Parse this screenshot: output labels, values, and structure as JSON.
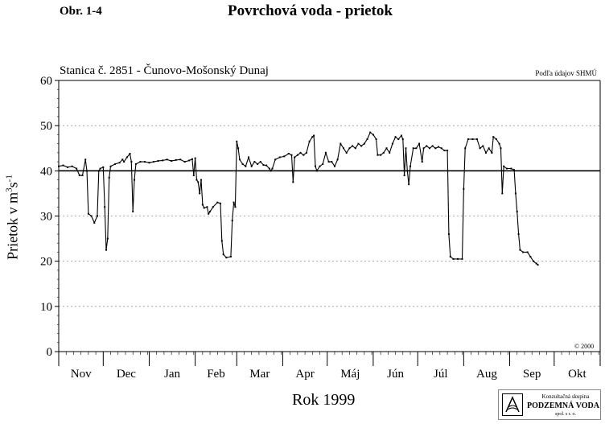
{
  "header": {
    "figure_label": "Obr. 1-4",
    "title": "Povrchová voda - prietok",
    "station": "Stanica č. 2851 - Čunovo-Mošonský Dunaj",
    "source": "Podľa údajov SHMÚ",
    "copyright": "© 2000"
  },
  "logo": {
    "line1": "Konzultačná skupina",
    "line2": "PODZEMNÁ VODA",
    "line3": "spol. s r. o."
  },
  "chart_data": {
    "type": "line",
    "xlabel": "Rok 1999",
    "ylabel": "Prietok v m",
    "ylabel_unit_sup1": "3",
    "ylabel_unit_mid": "s",
    "ylabel_unit_sup2": "-1",
    "ylim": [
      0,
      60
    ],
    "yticks": [
      0,
      10,
      20,
      30,
      40,
      50,
      60
    ],
    "grid": "horizontal-dotted",
    "months": [
      "Nov",
      "Dec",
      "Jan",
      "Feb",
      "Mar",
      "Apr",
      "Máj",
      "Jún",
      "Júl",
      "Aug",
      "Sep",
      "Okt"
    ],
    "x_unit": "day index from 1 Nov 1998",
    "x_range": [
      0,
      365
    ],
    "reference_line": 40,
    "series": [
      {
        "values": [
          [
            0,
            41
          ],
          [
            3,
            41.2
          ],
          [
            6,
            40.8
          ],
          [
            9,
            41
          ],
          [
            12,
            40.5
          ],
          [
            14,
            39
          ],
          [
            16,
            39
          ],
          [
            18,
            42.5
          ],
          [
            19,
            40
          ],
          [
            20,
            30.5
          ],
          [
            22,
            30
          ],
          [
            24,
            28.5
          ],
          [
            26,
            30
          ],
          [
            27,
            40
          ],
          [
            28,
            40.5
          ],
          [
            30,
            40.8
          ],
          [
            31,
            32
          ],
          [
            32,
            22.5
          ],
          [
            33,
            25
          ],
          [
            34,
            38.5
          ],
          [
            35,
            41
          ],
          [
            38,
            41.5
          ],
          [
            41,
            41.8
          ],
          [
            43,
            42.5
          ],
          [
            44,
            42
          ],
          [
            46,
            43
          ],
          [
            48,
            43.8
          ],
          [
            49,
            42
          ],
          [
            50,
            31
          ],
          [
            51,
            38
          ],
          [
            52,
            41.5
          ],
          [
            55,
            42
          ],
          [
            58,
            42
          ],
          [
            61,
            41.8
          ],
          [
            64,
            42
          ],
          [
            67,
            42.2
          ],
          [
            70,
            42.3
          ],
          [
            73,
            42.5
          ],
          [
            76,
            42.2
          ],
          [
            79,
            42.4
          ],
          [
            82,
            42.5
          ],
          [
            85,
            42
          ],
          [
            88,
            42.3
          ],
          [
            90,
            42.6
          ],
          [
            91,
            39
          ],
          [
            92,
            42.8
          ],
          [
            93,
            38
          ],
          [
            94,
            37.5
          ],
          [
            95,
            35
          ],
          [
            96,
            38
          ],
          [
            97,
            32.5
          ],
          [
            98,
            31.8
          ],
          [
            100,
            32
          ],
          [
            101,
            30.5
          ],
          [
            102,
            31
          ],
          [
            104,
            32
          ],
          [
            107,
            33
          ],
          [
            109,
            32.8
          ],
          [
            110,
            24.5
          ],
          [
            111,
            21.5
          ],
          [
            113,
            20.8
          ],
          [
            116,
            21
          ],
          [
            117,
            29
          ],
          [
            118,
            33
          ],
          [
            119,
            32
          ],
          [
            120,
            46.5
          ],
          [
            121,
            45
          ],
          [
            122,
            42.5
          ],
          [
            124,
            41.5
          ],
          [
            126,
            41
          ],
          [
            128,
            43
          ],
          [
            130,
            41
          ],
          [
            132,
            42
          ],
          [
            134,
            41.5
          ],
          [
            136,
            42
          ],
          [
            138,
            41.3
          ],
          [
            140,
            41.2
          ],
          [
            142,
            40.5
          ],
          [
            143,
            40
          ],
          [
            144,
            40.5
          ],
          [
            146,
            42.5
          ],
          [
            149,
            43
          ],
          [
            152,
            43.2
          ],
          [
            155,
            43.8
          ],
          [
            157,
            43.5
          ],
          [
            158,
            37.5
          ],
          [
            159,
            43
          ],
          [
            161,
            43.5
          ],
          [
            163,
            44
          ],
          [
            165,
            43.5
          ],
          [
            167,
            44
          ],
          [
            169,
            46.5
          ],
          [
            171,
            47.5
          ],
          [
            172,
            47.8
          ],
          [
            173,
            41
          ],
          [
            174,
            40
          ],
          [
            176,
            41
          ],
          [
            178,
            41.5
          ],
          [
            180,
            44
          ],
          [
            182,
            42
          ],
          [
            184,
            42
          ],
          [
            186,
            41
          ],
          [
            188,
            42.5
          ],
          [
            190,
            46
          ],
          [
            192,
            45
          ],
          [
            194,
            44
          ],
          [
            196,
            45
          ],
          [
            198,
            45.5
          ],
          [
            200,
            45
          ],
          [
            202,
            46
          ],
          [
            204,
            45.5
          ],
          [
            206,
            46
          ],
          [
            208,
            47
          ],
          [
            210,
            48.5
          ],
          [
            212,
            48
          ],
          [
            214,
            47
          ],
          [
            215,
            43.5
          ],
          [
            217,
            43.5
          ],
          [
            219,
            44
          ],
          [
            221,
            45
          ],
          [
            223,
            44
          ],
          [
            225,
            46
          ],
          [
            227,
            47.5
          ],
          [
            229,
            47
          ],
          [
            231,
            47.8
          ],
          [
            232,
            47
          ],
          [
            233,
            39
          ],
          [
            234,
            45
          ],
          [
            235,
            40
          ],
          [
            236,
            37
          ],
          [
            237,
            41
          ],
          [
            239,
            45
          ],
          [
            241,
            45
          ],
          [
            243,
            46
          ],
          [
            245,
            42
          ],
          [
            246,
            45
          ],
          [
            248,
            45.5
          ],
          [
            250,
            45
          ],
          [
            252,
            45.5
          ],
          [
            254,
            45
          ],
          [
            256,
            45.3
          ],
          [
            258,
            45
          ],
          [
            260,
            44.5
          ],
          [
            262,
            44.5
          ],
          [
            263,
            26
          ],
          [
            264,
            21
          ],
          [
            266,
            20.5
          ],
          [
            269,
            20.5
          ],
          [
            272,
            20.5
          ],
          [
            273,
            36
          ],
          [
            274,
            45
          ],
          [
            276,
            47
          ],
          [
            279,
            47
          ],
          [
            282,
            47
          ],
          [
            284,
            45
          ],
          [
            286,
            45.5
          ],
          [
            288,
            44
          ],
          [
            290,
            45
          ],
          [
            292,
            44
          ],
          [
            293,
            47.5
          ],
          [
            295,
            47
          ],
          [
            297,
            46
          ],
          [
            298,
            45
          ],
          [
            299,
            35
          ],
          [
            300,
            41
          ],
          [
            302,
            40.5
          ],
          [
            305,
            40.5
          ],
          [
            307,
            40.2
          ],
          [
            308,
            35
          ],
          [
            309,
            31
          ],
          [
            310,
            26
          ],
          [
            311,
            22.5
          ],
          [
            313,
            22
          ],
          [
            316,
            22
          ],
          [
            318,
            21
          ],
          [
            320,
            20
          ],
          [
            322,
            19.5
          ],
          [
            323,
            19.2
          ]
        ]
      }
    ]
  }
}
